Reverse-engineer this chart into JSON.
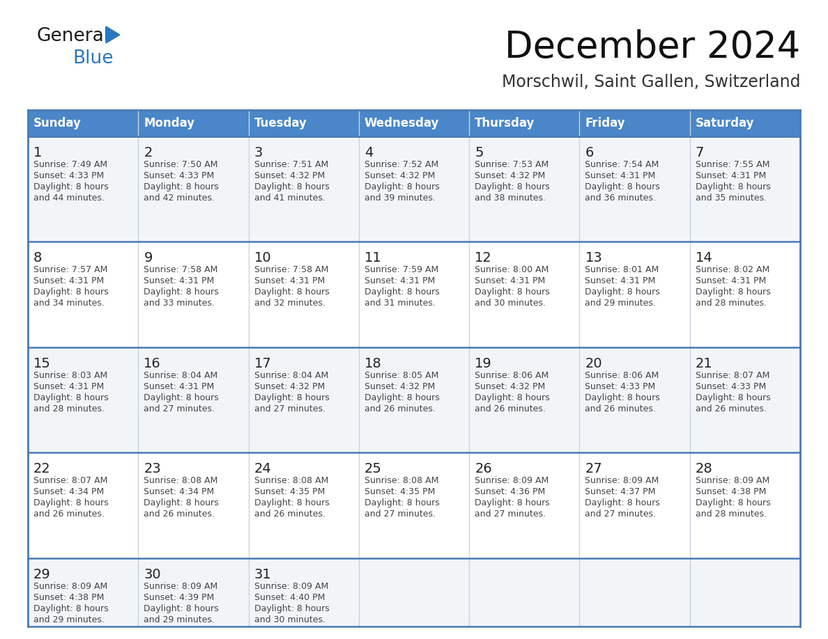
{
  "title": "December 2024",
  "subtitle": "Morschwil, Saint Gallen, Switzerland",
  "days_of_week": [
    "Sunday",
    "Monday",
    "Tuesday",
    "Wednesday",
    "Thursday",
    "Friday",
    "Saturday"
  ],
  "header_bg": "#4a86c8",
  "header_text": "#ffffff",
  "cell_bg_odd": "#f2f5f8",
  "cell_bg_even": "#ffffff",
  "row_separator_color": "#4a7ab5",
  "col_separator_color": "#c8d4e0",
  "outer_border_color": "#4a7ab5",
  "day_num_color": "#222222",
  "text_color": "#444444",
  "logo_general_color": "#1a1a1a",
  "logo_blue_color": "#2878c0",
  "logo_triangle_color": "#2878c0",
  "title_color": "#111111",
  "subtitle_color": "#333333",
  "calendar_data": [
    [
      {
        "day": 1,
        "sunrise": "7:49 AM",
        "sunset": "4:33 PM",
        "daylight": "8 hours and 44 minutes."
      },
      {
        "day": 2,
        "sunrise": "7:50 AM",
        "sunset": "4:33 PM",
        "daylight": "8 hours and 42 minutes."
      },
      {
        "day": 3,
        "sunrise": "7:51 AM",
        "sunset": "4:32 PM",
        "daylight": "8 hours and 41 minutes."
      },
      {
        "day": 4,
        "sunrise": "7:52 AM",
        "sunset": "4:32 PM",
        "daylight": "8 hours and 39 minutes."
      },
      {
        "day": 5,
        "sunrise": "7:53 AM",
        "sunset": "4:32 PM",
        "daylight": "8 hours and 38 minutes."
      },
      {
        "day": 6,
        "sunrise": "7:54 AM",
        "sunset": "4:31 PM",
        "daylight": "8 hours and 36 minutes."
      },
      {
        "day": 7,
        "sunrise": "7:55 AM",
        "sunset": "4:31 PM",
        "daylight": "8 hours and 35 minutes."
      }
    ],
    [
      {
        "day": 8,
        "sunrise": "7:57 AM",
        "sunset": "4:31 PM",
        "daylight": "8 hours and 34 minutes."
      },
      {
        "day": 9,
        "sunrise": "7:58 AM",
        "sunset": "4:31 PM",
        "daylight": "8 hours and 33 minutes."
      },
      {
        "day": 10,
        "sunrise": "7:58 AM",
        "sunset": "4:31 PM",
        "daylight": "8 hours and 32 minutes."
      },
      {
        "day": 11,
        "sunrise": "7:59 AM",
        "sunset": "4:31 PM",
        "daylight": "8 hours and 31 minutes."
      },
      {
        "day": 12,
        "sunrise": "8:00 AM",
        "sunset": "4:31 PM",
        "daylight": "8 hours and 30 minutes."
      },
      {
        "day": 13,
        "sunrise": "8:01 AM",
        "sunset": "4:31 PM",
        "daylight": "8 hours and 29 minutes."
      },
      {
        "day": 14,
        "sunrise": "8:02 AM",
        "sunset": "4:31 PM",
        "daylight": "8 hours and 28 minutes."
      }
    ],
    [
      {
        "day": 15,
        "sunrise": "8:03 AM",
        "sunset": "4:31 PM",
        "daylight": "8 hours and 28 minutes."
      },
      {
        "day": 16,
        "sunrise": "8:04 AM",
        "sunset": "4:31 PM",
        "daylight": "8 hours and 27 minutes."
      },
      {
        "day": 17,
        "sunrise": "8:04 AM",
        "sunset": "4:32 PM",
        "daylight": "8 hours and 27 minutes."
      },
      {
        "day": 18,
        "sunrise": "8:05 AM",
        "sunset": "4:32 PM",
        "daylight": "8 hours and 26 minutes."
      },
      {
        "day": 19,
        "sunrise": "8:06 AM",
        "sunset": "4:32 PM",
        "daylight": "8 hours and 26 minutes."
      },
      {
        "day": 20,
        "sunrise": "8:06 AM",
        "sunset": "4:33 PM",
        "daylight": "8 hours and 26 minutes."
      },
      {
        "day": 21,
        "sunrise": "8:07 AM",
        "sunset": "4:33 PM",
        "daylight": "8 hours and 26 minutes."
      }
    ],
    [
      {
        "day": 22,
        "sunrise": "8:07 AM",
        "sunset": "4:34 PM",
        "daylight": "8 hours and 26 minutes."
      },
      {
        "day": 23,
        "sunrise": "8:08 AM",
        "sunset": "4:34 PM",
        "daylight": "8 hours and 26 minutes."
      },
      {
        "day": 24,
        "sunrise": "8:08 AM",
        "sunset": "4:35 PM",
        "daylight": "8 hours and 26 minutes."
      },
      {
        "day": 25,
        "sunrise": "8:08 AM",
        "sunset": "4:35 PM",
        "daylight": "8 hours and 27 minutes."
      },
      {
        "day": 26,
        "sunrise": "8:09 AM",
        "sunset": "4:36 PM",
        "daylight": "8 hours and 27 minutes."
      },
      {
        "day": 27,
        "sunrise": "8:09 AM",
        "sunset": "4:37 PM",
        "daylight": "8 hours and 27 minutes."
      },
      {
        "day": 28,
        "sunrise": "8:09 AM",
        "sunset": "4:38 PM",
        "daylight": "8 hours and 28 minutes."
      }
    ],
    [
      {
        "day": 29,
        "sunrise": "8:09 AM",
        "sunset": "4:38 PM",
        "daylight": "8 hours and 29 minutes."
      },
      {
        "day": 30,
        "sunrise": "8:09 AM",
        "sunset": "4:39 PM",
        "daylight": "8 hours and 29 minutes."
      },
      {
        "day": 31,
        "sunrise": "8:09 AM",
        "sunset": "4:40 PM",
        "daylight": "8 hours and 30 minutes."
      },
      null,
      null,
      null,
      null
    ]
  ]
}
